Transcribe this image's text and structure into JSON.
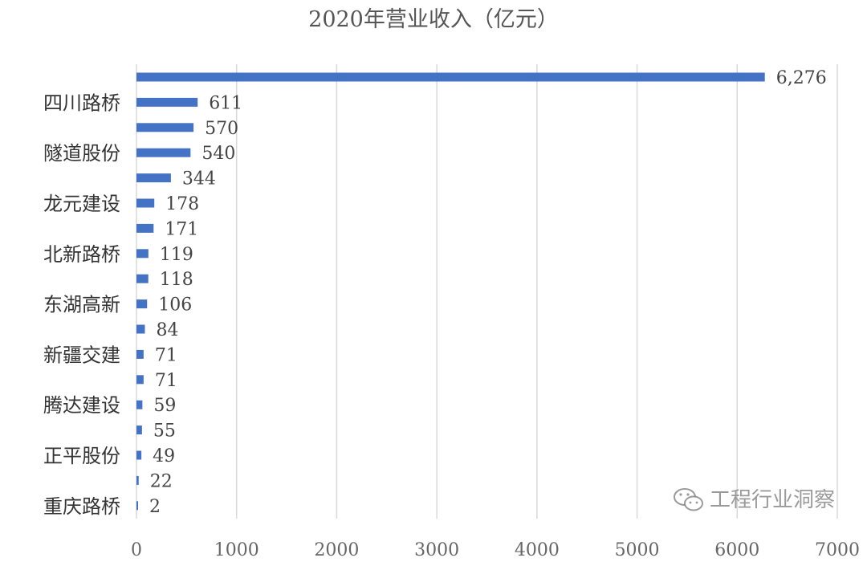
{
  "chart_data": {
    "type": "bar",
    "orientation": "horizontal",
    "title": "2020年营业收入（亿元）",
    "categories": [
      "",
      "四川路桥",
      "",
      "隧道股份",
      "",
      "龙元建设",
      "",
      "北新路桥",
      "",
      "东湖高新",
      "",
      "新疆交建",
      "",
      "腾达建设",
      "",
      "正平股份",
      "",
      "重庆路桥"
    ],
    "values": [
      6276,
      611,
      570,
      540,
      344,
      178,
      171,
      119,
      118,
      106,
      84,
      71,
      71,
      59,
      55,
      49,
      22,
      2
    ],
    "data_labels": [
      "6,276",
      "611",
      "570",
      "540",
      "344",
      "178",
      "171",
      "119",
      "118",
      "106",
      "84",
      "71",
      "71",
      "59",
      "55",
      "49",
      "22",
      "2"
    ],
    "xlim": [
      0,
      7000
    ],
    "xticks": [
      "0",
      "1000",
      "2000",
      "3000",
      "4000",
      "5000",
      "6000",
      "7000"
    ],
    "grid": "vertical",
    "bar_color": "#4472C4",
    "xlabel": "",
    "ylabel": ""
  },
  "watermark": {
    "text": "工程行业洞察",
    "icon": "wechat-icon"
  }
}
